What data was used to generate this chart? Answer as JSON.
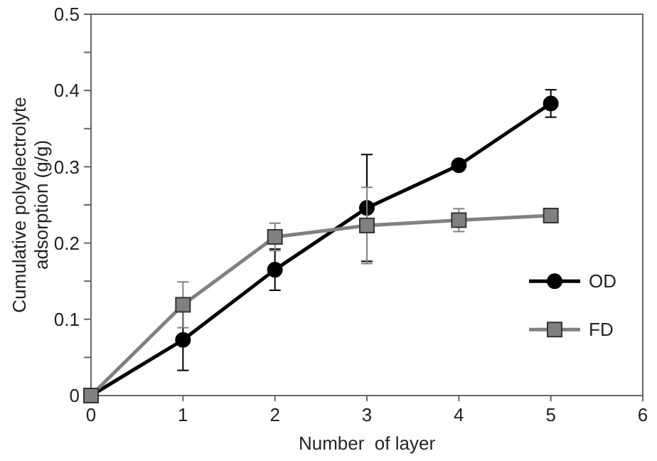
{
  "chart_data": {
    "type": "line",
    "xlabel": "Number  of layer",
    "ylabel": "Cumulative polyelectrolyte adsorption (g/g)",
    "x": [
      0,
      1,
      2,
      3,
      4,
      5
    ],
    "xlim": [
      0,
      6
    ],
    "xticks": [
      0,
      1,
      2,
      3,
      4,
      5,
      6
    ],
    "ylim": [
      0,
      0.5
    ],
    "yticks": [
      0,
      {
        "value": 0.05,
        "label": null
      },
      0.1,
      {
        "value": 0.15,
        "label": null
      },
      0.2,
      {
        "value": 0.25,
        "label": null
      },
      0.3,
      {
        "value": 0.35,
        "label": null
      },
      0.4,
      {
        "value": 0.45,
        "label": null
      },
      0.5
    ],
    "grid": false,
    "legend": "right",
    "series": [
      {
        "name": "OD",
        "color": "#000000",
        "marker": "circle",
        "values": [
          0,
          0.073,
          0.165,
          0.246,
          0.302,
          0.383
        ],
        "errors": [
          null,
          0.04,
          0.027,
          0.07,
          null,
          0.018
        ]
      },
      {
        "name": "FD",
        "color": "#808080",
        "marker": "square",
        "values": [
          0,
          0.119,
          0.208,
          0.223,
          0.23,
          0.236
        ],
        "errors": [
          null,
          0.03,
          0.018,
          0.05,
          0.015,
          null
        ]
      }
    ]
  }
}
